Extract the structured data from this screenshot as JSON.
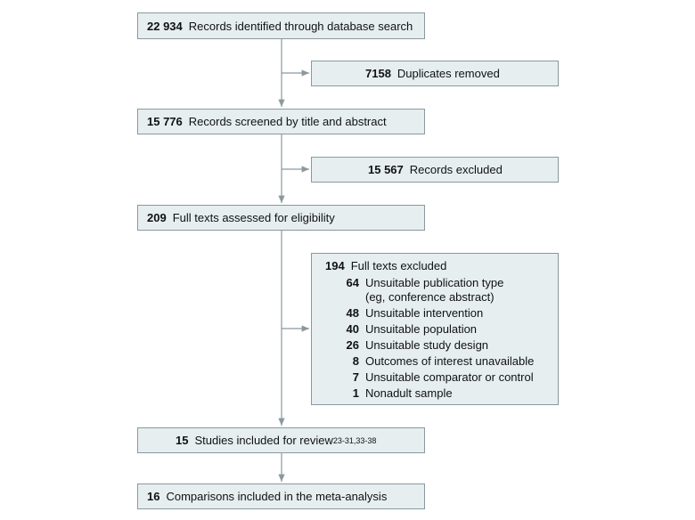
{
  "nodes": [
    {
      "count": "22 934",
      "label": "Records identified through database search"
    },
    {
      "count": "7158",
      "label": "Duplicates removed"
    },
    {
      "count": "15 776",
      "label": "Records screened by title and abstract"
    },
    {
      "count": "15 567",
      "label": "Records excluded"
    },
    {
      "count": "209",
      "label": "Full texts assessed for eligibility"
    },
    {
      "count": "194",
      "label": "Full texts excluded",
      "reasons": [
        {
          "count": "64",
          "label": "Unsuitable publication type\n(eg, conference abstract)"
        },
        {
          "count": "48",
          "label": "Unsuitable intervention"
        },
        {
          "count": "40",
          "label": "Unsuitable population"
        },
        {
          "count": "26",
          "label": "Unsuitable study design"
        },
        {
          "count": "8",
          "label": "Outcomes of interest unavailable"
        },
        {
          "count": "7",
          "label": "Unsuitable comparator or control"
        },
        {
          "count": "1",
          "label": "Nonadult sample"
        }
      ]
    },
    {
      "count": "15",
      "label": "Studies included for review",
      "superscript": "23-31,33-38"
    },
    {
      "count": "16",
      "label": "Comparisons included in the meta-analysis"
    }
  ]
}
